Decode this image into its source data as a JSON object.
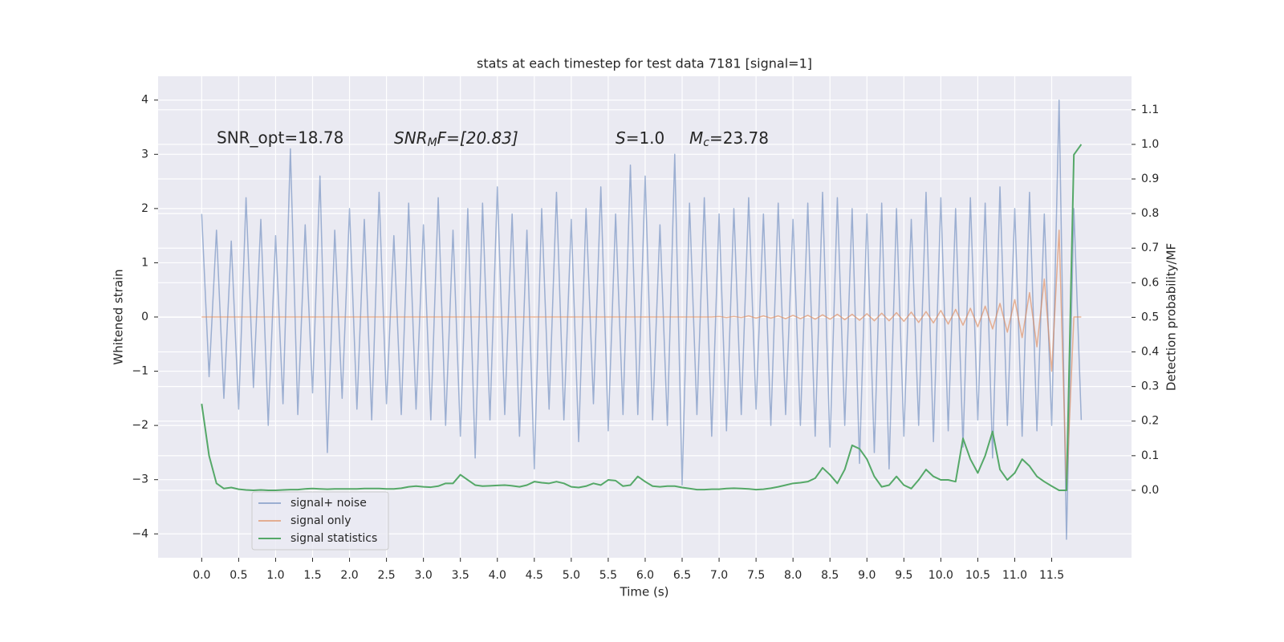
{
  "chart_data": {
    "type": "line",
    "title": "stats at each timestep for test data 7181 [signal=1]",
    "xlabel": "Time (s)",
    "ylabel": "Whitened strain",
    "y2label": "Detection probability/MF",
    "annotations": [
      "SNR_opt=18.78",
      [
        "SNR",
        "M",
        "F=[20.83]"
      ],
      [
        "S",
        "=1.0"
      ],
      [
        "M",
        "c",
        "=23.78"
      ]
    ],
    "grid": true,
    "legend": "lower left",
    "xlim": [
      -0.59,
      12.58
    ],
    "ylim": [
      -4.44,
      4.44
    ],
    "y2lim": [
      -0.195,
      1.197
    ],
    "xticks": [
      {
        "value": 0,
        "label": "0.0"
      },
      0.5,
      {
        "value": 1,
        "label": "1.0"
      },
      1.5,
      {
        "value": 2,
        "label": "2.0"
      },
      2.5,
      {
        "value": 3,
        "label": "3.0"
      },
      3.5,
      {
        "value": 4,
        "label": "4.0"
      },
      4.5,
      {
        "value": 5,
        "label": "5.0"
      },
      5.5,
      {
        "value": 6,
        "label": "6.0"
      },
      6.5,
      {
        "value": 7,
        "label": "7.0"
      },
      7.5,
      {
        "value": 8,
        "label": "8.0"
      },
      8.5,
      {
        "value": 9,
        "label": "9.0"
      },
      9.5,
      {
        "value": 10,
        "label": "10.0"
      },
      10.5,
      {
        "value": 11,
        "label": "11.0"
      },
      11.5
    ],
    "yticks": [
      {
        "value": -4,
        "label": "−4"
      },
      {
        "value": -3,
        "label": "−3"
      },
      {
        "value": -2,
        "label": "−2"
      },
      {
        "value": -1,
        "label": "−1"
      },
      0,
      1,
      2,
      3,
      4
    ],
    "y2ticks": [
      {
        "value": 0,
        "label": "0.0"
      },
      0.1,
      0.2,
      0.3,
      0.4,
      0.5,
      0.6,
      0.7,
      0.8,
      0.9,
      {
        "value": 1,
        "label": "1.0"
      },
      1.1
    ],
    "x": [
      0,
      0.1,
      0.2,
      0.3,
      0.4,
      0.5,
      0.6,
      0.7,
      0.8,
      0.9,
      1,
      1.1,
      1.2,
      1.3,
      1.4,
      1.5,
      1.6,
      1.7,
      1.8,
      1.9,
      2,
      2.1,
      2.2,
      2.3,
      2.4,
      2.5,
      2.6,
      2.7,
      2.8,
      2.9,
      3,
      3.1,
      3.2,
      3.3,
      3.4,
      3.5,
      3.6,
      3.7,
      3.8,
      3.9,
      4,
      4.1,
      4.2,
      4.3,
      4.4,
      4.5,
      4.6,
      4.7,
      4.8,
      4.9,
      5,
      5.1,
      5.2,
      5.3,
      5.4,
      5.5,
      5.6,
      5.7,
      5.8,
      5.9,
      6,
      6.1,
      6.2,
      6.3,
      6.4,
      6.5,
      6.6,
      6.7,
      6.8,
      6.9,
      7,
      7.1,
      7.2,
      7.3,
      7.4,
      7.5,
      7.6,
      7.7,
      7.8,
      7.9,
      8,
      8.1,
      8.2,
      8.3,
      8.4,
      8.5,
      8.6,
      8.7,
      8.8,
      8.9,
      9,
      9.1,
      9.2,
      9.3,
      9.4,
      9.5,
      9.6,
      9.7,
      9.8,
      9.9,
      10,
      10.1,
      10.2,
      10.3,
      10.4,
      10.5,
      10.6,
      10.7,
      10.8,
      10.9,
      11,
      11.1,
      11.2,
      11.3,
      11.4,
      11.5,
      11.6,
      11.7,
      11.8,
      11.9
    ],
    "series": [
      {
        "name": "signal+ noise",
        "color": "#4c72b0",
        "opacity": 0.5,
        "values": [
          1.9,
          -1.1,
          1.6,
          -1.5,
          1.4,
          -1.7,
          2.2,
          -1.3,
          1.8,
          -2.0,
          1.5,
          -1.6,
          3.1,
          -1.8,
          1.7,
          -1.4,
          2.6,
          -2.5,
          1.6,
          -1.5,
          2.0,
          -1.7,
          1.8,
          -1.9,
          2.3,
          -1.6,
          1.5,
          -1.8,
          2.1,
          -1.7,
          1.7,
          -1.9,
          2.2,
          -2.0,
          1.6,
          -2.2,
          2.0,
          -2.6,
          2.1,
          -1.9,
          2.4,
          -1.8,
          1.9,
          -2.2,
          1.6,
          -2.8,
          2.0,
          -1.7,
          2.3,
          -1.9,
          1.8,
          -2.3,
          2.0,
          -1.6,
          2.4,
          -2.1,
          1.9,
          -1.8,
          2.8,
          -1.8,
          2.6,
          -1.9,
          1.7,
          -2.0,
          3.0,
          -3.1,
          2.1,
          -1.8,
          2.2,
          -2.2,
          1.9,
          -2.1,
          2.0,
          -1.8,
          2.2,
          -1.7,
          1.9,
          -2.0,
          2.1,
          -1.8,
          1.8,
          -2.0,
          2.1,
          -2.2,
          2.3,
          -2.4,
          2.2,
          -2.0,
          2.0,
          -2.7,
          1.9,
          -2.5,
          2.1,
          -2.8,
          2.0,
          -2.2,
          1.8,
          -2.0,
          2.3,
          -2.3,
          2.2,
          -2.1,
          2.0,
          -2.4,
          2.2,
          -1.9,
          2.1,
          -2.6,
          2.4,
          -2.0,
          2.0,
          -2.2,
          2.3,
          -2.1,
          1.9,
          -2.0,
          4.0,
          -4.1,
          2.0,
          -1.9
        ]
      },
      {
        "name": "signal only",
        "color": "#dd8452",
        "opacity": 0.6,
        "values": [
          0,
          0,
          0,
          0,
          0,
          0,
          0,
          0,
          0,
          0,
          0,
          0,
          0,
          0,
          0,
          0,
          0,
          0,
          0,
          0,
          0,
          0,
          0,
          0,
          0,
          0,
          0,
          0,
          0,
          0,
          0,
          0,
          0,
          0,
          0,
          0,
          0,
          0,
          0,
          0,
          0,
          0,
          0,
          0,
          0,
          0,
          0,
          0,
          0,
          0,
          0,
          0,
          0,
          0,
          0,
          0,
          0,
          0,
          0,
          0,
          0,
          0,
          0,
          0,
          0,
          0,
          0,
          0,
          0,
          0,
          0.01,
          -0.01,
          0.01,
          -0.01,
          0.02,
          -0.02,
          0.02,
          -0.02,
          0.02,
          -0.03,
          0.03,
          -0.03,
          0.03,
          -0.04,
          0.04,
          -0.04,
          0.05,
          -0.05,
          0.05,
          -0.06,
          0.06,
          -0.07,
          0.07,
          -0.07,
          0.08,
          -0.08,
          0.09,
          -0.1,
          0.1,
          -0.11,
          0.12,
          -0.13,
          0.14,
          -0.15,
          0.16,
          -0.18,
          0.2,
          -0.22,
          0.25,
          -0.28,
          0.32,
          -0.38,
          0.45,
          -0.55,
          0.7,
          -1.0,
          1.6,
          -3.2,
          0,
          0
        ]
      },
      {
        "name": "signal statistics",
        "color": "#55a868",
        "opacity": 1,
        "axis": "y2",
        "values": [
          0.25,
          0.1,
          0.02,
          0.005,
          0.008,
          0.003,
          0.001,
          0.0,
          0.001,
          0.0,
          0.0,
          0.001,
          0.002,
          0.002,
          0.004,
          0.005,
          0.004,
          0.003,
          0.004,
          0.004,
          0.004,
          0.004,
          0.005,
          0.005,
          0.005,
          0.004,
          0.004,
          0.006,
          0.01,
          0.012,
          0.01,
          0.009,
          0.012,
          0.02,
          0.02,
          0.045,
          0.03,
          0.015,
          0.012,
          0.013,
          0.014,
          0.015,
          0.013,
          0.01,
          0.015,
          0.025,
          0.022,
          0.02,
          0.025,
          0.02,
          0.01,
          0.008,
          0.012,
          0.02,
          0.015,
          0.03,
          0.028,
          0.012,
          0.015,
          0.04,
          0.025,
          0.012,
          0.01,
          0.012,
          0.012,
          0.008,
          0.005,
          0.002,
          0.002,
          0.003,
          0.003,
          0.005,
          0.006,
          0.005,
          0.004,
          0.002,
          0.003,
          0.006,
          0.01,
          0.015,
          0.02,
          0.022,
          0.025,
          0.035,
          0.065,
          0.045,
          0.02,
          0.06,
          0.13,
          0.12,
          0.09,
          0.04,
          0.01,
          0.015,
          0.04,
          0.015,
          0.005,
          0.03,
          0.06,
          0.04,
          0.03,
          0.03,
          0.025,
          0.15,
          0.09,
          0.05,
          0.1,
          0.17,
          0.06,
          0.03,
          0.05,
          0.09,
          0.07,
          0.04,
          0.025,
          0.012,
          0.0,
          0.0,
          0.97,
          1.0
        ]
      }
    ]
  }
}
